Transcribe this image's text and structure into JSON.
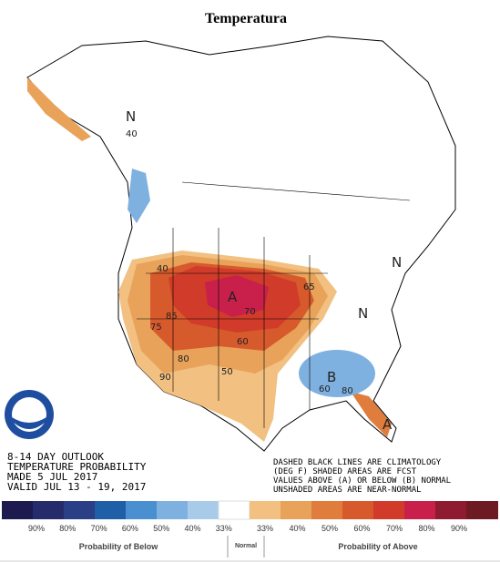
{
  "header": {
    "title": "Temperatura"
  },
  "map": {
    "outlook_text": [
      "8-14 DAY OUTLOOK",
      "TEMPERATURE PROBABILITY",
      "MADE  5 JUL 2017",
      "VALID  JUL 13 - 19, 2017"
    ],
    "note_text": [
      "DASHED BLACK LINES ARE CLIMATOLOGY",
      "(DEG F) SHADED AREAS ARE FCST",
      "VALUES ABOVE (A) OR BELOW (B) NORMAL",
      "UNSHADED AREAS ARE NEAR-NORMAL"
    ],
    "labels": [
      "N",
      "A",
      "B",
      "A",
      "N",
      "N",
      "70",
      "60",
      "50",
      "40",
      "75",
      "80",
      "90",
      "65",
      "85",
      "40",
      "60",
      "80"
    ]
  },
  "legend": {
    "below_labels": [
      "90%",
      "80%",
      "70%",
      "60%",
      "50%",
      "40%",
      "33%"
    ],
    "above_labels": [
      "33%",
      "40%",
      "50%",
      "60%",
      "70%",
      "80%",
      "90%"
    ],
    "below_title": "Probability of Below",
    "normal_title": "Normal",
    "above_title": "Probability of Above"
  }
}
